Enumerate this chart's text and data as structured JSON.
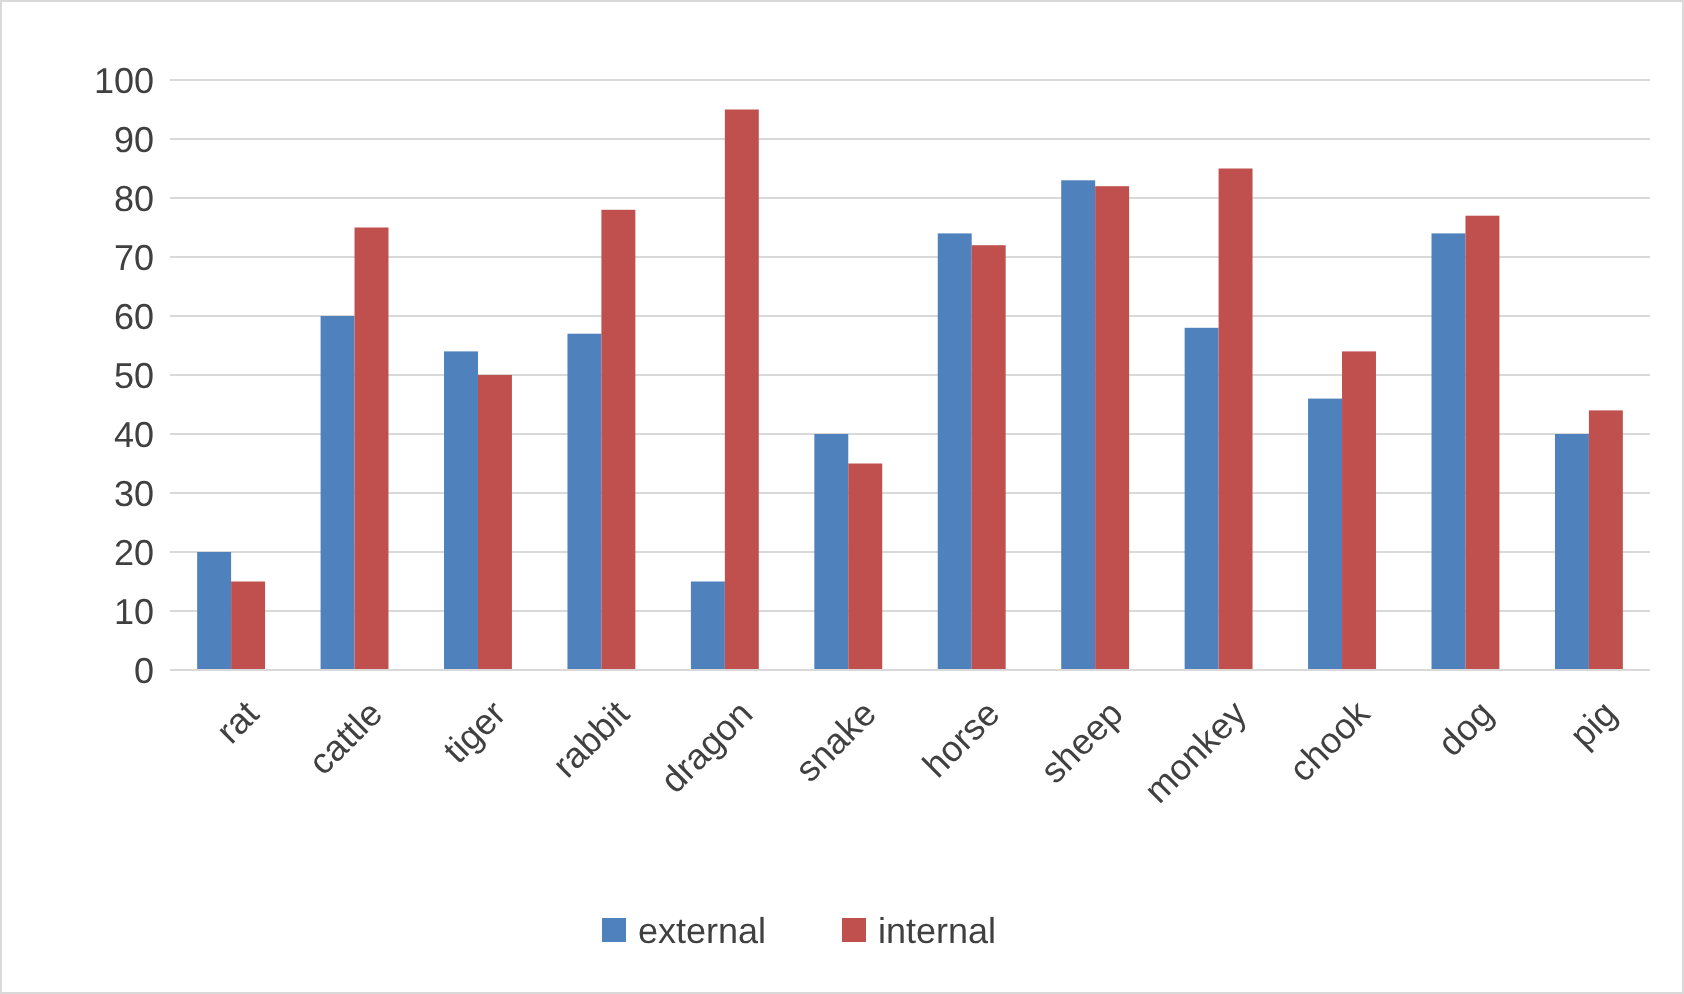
{
  "chart_data": {
    "type": "bar",
    "categories": [
      "rat",
      "cattle",
      "tiger",
      "rabbit",
      "dragon",
      "snake",
      "horse",
      "sheep",
      "monkey",
      "chook",
      "dog",
      "pig"
    ],
    "series": [
      {
        "name": "external",
        "color": "#4f81bd",
        "values": [
          20,
          60,
          54,
          57,
          15,
          40,
          74,
          83,
          58,
          46,
          74,
          40
        ]
      },
      {
        "name": "internal",
        "color": "#c0504d",
        "values": [
          15,
          75,
          50,
          78,
          95,
          35,
          72,
          82,
          85,
          54,
          77,
          44
        ]
      }
    ],
    "ylim": [
      0,
      100
    ],
    "yticks": [
      0,
      10,
      20,
      30,
      40,
      50,
      60,
      70,
      80,
      90,
      100
    ],
    "grid": "y",
    "legend": "bottom"
  }
}
